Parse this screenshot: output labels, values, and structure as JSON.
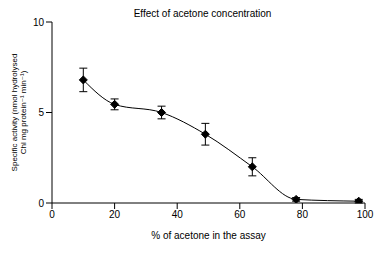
{
  "chart_data": {
    "type": "line",
    "title": "Effect of acetone concentration",
    "x_label": "% of acetone in the assay",
    "y_label": "Specific activity (nmol hydrolysed Chl mg protein⁻¹ min⁻¹)",
    "x": [
      10,
      20,
      35,
      49,
      64,
      78,
      98
    ],
    "values": [
      6.8,
      5.45,
      5.0,
      3.8,
      2.0,
      0.2,
      0.1
    ],
    "errors": [
      0.65,
      0.3,
      0.35,
      0.6,
      0.5,
      0.1,
      0.1
    ],
    "color": "#000000",
    "marker": "diamond",
    "line_style": "solid",
    "xlim": [
      0,
      100
    ],
    "xticks": [
      0,
      20,
      40,
      60,
      80,
      100
    ],
    "ylim": [
      0,
      10
    ],
    "yticks": [
      0,
      5,
      10
    ],
    "grid": false
  }
}
